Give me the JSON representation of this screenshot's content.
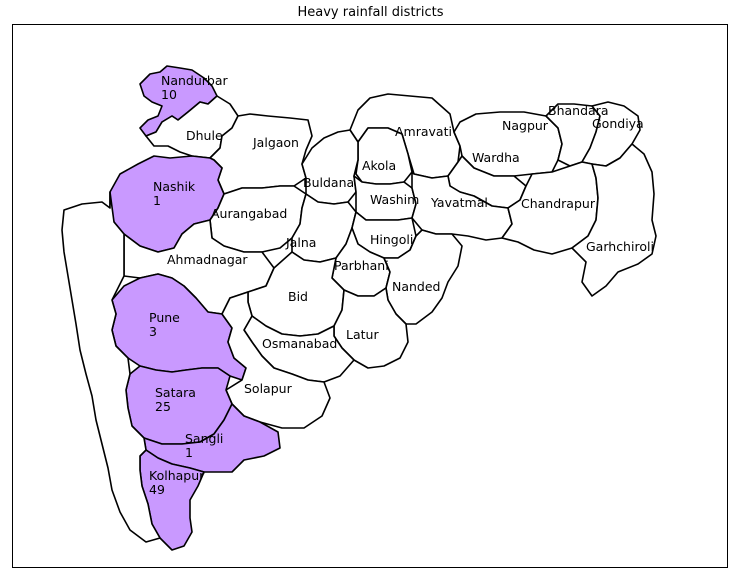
{
  "title": "Heavy rainfall districts",
  "colors": {
    "highlight": "#c999ff",
    "base": "#ffffff",
    "border": "#000000"
  },
  "districts": [
    {
      "id": "nandurbar",
      "name": "Nandurbar",
      "value": "10",
      "highlighted": true
    },
    {
      "id": "dhule",
      "name": "Dhule",
      "value": null,
      "highlighted": false
    },
    {
      "id": "jalgaon",
      "name": "Jalgaon",
      "value": null,
      "highlighted": false
    },
    {
      "id": "amravati",
      "name": "Amravati",
      "value": null,
      "highlighted": false
    },
    {
      "id": "nagpur",
      "name": "Nagpur",
      "value": null,
      "highlighted": false
    },
    {
      "id": "bhandara",
      "name": "Bhandara",
      "value": null,
      "highlighted": false
    },
    {
      "id": "gondiya",
      "name": "Gondiya",
      "value": null,
      "highlighted": false
    },
    {
      "id": "akola",
      "name": "Akola",
      "value": null,
      "highlighted": false
    },
    {
      "id": "wardha",
      "name": "Wardha",
      "value": null,
      "highlighted": false
    },
    {
      "id": "buldana",
      "name": "Buldana",
      "value": null,
      "highlighted": false
    },
    {
      "id": "nashik",
      "name": "Nashik",
      "value": "1",
      "highlighted": true
    },
    {
      "id": "washim",
      "name": "Washim",
      "value": null,
      "highlighted": false
    },
    {
      "id": "yavatmal",
      "name": "Yavatmal",
      "value": null,
      "highlighted": false
    },
    {
      "id": "chandrapur",
      "name": "Chandrapur",
      "value": null,
      "highlighted": false
    },
    {
      "id": "aurangabad",
      "name": "Aurangabad",
      "value": null,
      "highlighted": false
    },
    {
      "id": "jalna",
      "name": "Jalna",
      "value": null,
      "highlighted": false
    },
    {
      "id": "hingoli",
      "name": "Hingoli",
      "value": null,
      "highlighted": false
    },
    {
      "id": "garhchiroli",
      "name": "Garhchiroli",
      "value": null,
      "highlighted": false
    },
    {
      "id": "ahmadnagar",
      "name": "Ahmadnagar",
      "value": null,
      "highlighted": false
    },
    {
      "id": "parbhani",
      "name": "Parbhani",
      "value": null,
      "highlighted": false
    },
    {
      "id": "nanded",
      "name": "Nanded",
      "value": null,
      "highlighted": false
    },
    {
      "id": "bid",
      "name": "Bid",
      "value": null,
      "highlighted": false
    },
    {
      "id": "pune",
      "name": "Pune",
      "value": "3",
      "highlighted": true
    },
    {
      "id": "latur",
      "name": "Latur",
      "value": null,
      "highlighted": false
    },
    {
      "id": "osmanabad",
      "name": "Osmanabad",
      "value": null,
      "highlighted": false
    },
    {
      "id": "solapur",
      "name": "Solapur",
      "value": null,
      "highlighted": false
    },
    {
      "id": "satara",
      "name": "Satara",
      "value": "25",
      "highlighted": true
    },
    {
      "id": "sangli",
      "name": "Sangli",
      "value": "1",
      "highlighted": true
    },
    {
      "id": "kolhapur",
      "name": "Kolhapur",
      "value": "49",
      "highlighted": true
    },
    {
      "id": "konkan-coast",
      "name": "",
      "value": null,
      "highlighted": false
    }
  ]
}
